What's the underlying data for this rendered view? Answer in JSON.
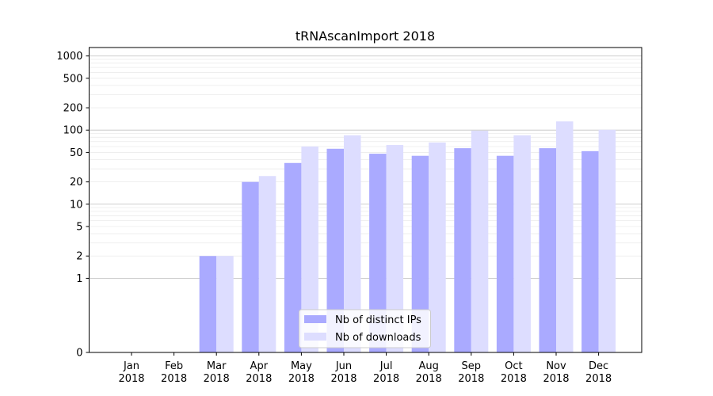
{
  "chart_data": {
    "type": "bar",
    "title": "tRNAscanImport 2018",
    "xlabel": "",
    "ylabel": "",
    "yscale": "symlog",
    "ylim": [
      0,
      1300
    ],
    "y_ticks": [
      0,
      1,
      2,
      5,
      10,
      20,
      50,
      100,
      200,
      500,
      1000
    ],
    "categories": [
      {
        "month": "Jan",
        "year": "2018"
      },
      {
        "month": "Feb",
        "year": "2018"
      },
      {
        "month": "Mar",
        "year": "2018"
      },
      {
        "month": "Apr",
        "year": "2018"
      },
      {
        "month": "May",
        "year": "2018"
      },
      {
        "month": "Jun",
        "year": "2018"
      },
      {
        "month": "Jul",
        "year": "2018"
      },
      {
        "month": "Aug",
        "year": "2018"
      },
      {
        "month": "Sep",
        "year": "2018"
      },
      {
        "month": "Oct",
        "year": "2018"
      },
      {
        "month": "Nov",
        "year": "2018"
      },
      {
        "month": "Dec",
        "year": "2018"
      }
    ],
    "series": [
      {
        "name": "Nb of distinct IPs",
        "color": "#aaaaff",
        "values": [
          0,
          0,
          2,
          20,
          36,
          56,
          48,
          45,
          57,
          45,
          57,
          52
        ]
      },
      {
        "name": "Nb of downloads",
        "color": "#ddddff",
        "values": [
          0,
          0,
          2,
          24,
          60,
          85,
          63,
          68,
          98,
          85,
          131,
          101
        ]
      }
    ],
    "grid": true,
    "legend_position": "bottom-center"
  }
}
